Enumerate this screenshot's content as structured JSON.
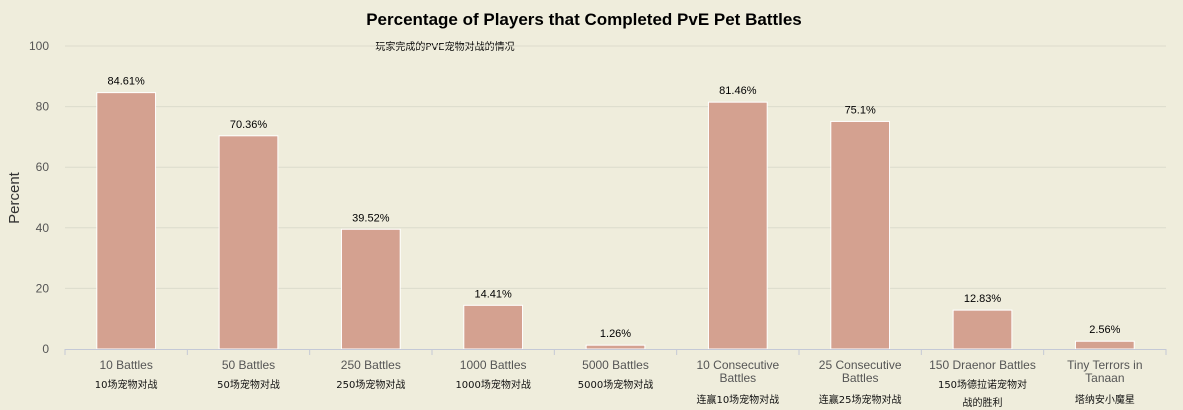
{
  "chart_data": {
    "type": "bar",
    "title": "Percentage of Players that Completed PvE Pet Battles",
    "subtitle": "玩家完成的PVE宠物对战的情况",
    "xlabel": "",
    "ylabel": "Percent",
    "ylim": [
      0,
      100
    ],
    "yticks": [
      0,
      20,
      40,
      60,
      80,
      100
    ],
    "grid": true,
    "legend": "none",
    "bar_color": "#d4a190",
    "categories": [
      {
        "label": [
          "10 Battles"
        ],
        "cn": [
          "10场宠物对战"
        ]
      },
      {
        "label": [
          "50 Battles"
        ],
        "cn": [
          "50场宠物对战"
        ]
      },
      {
        "label": [
          "250 Battles"
        ],
        "cn": [
          "250场宠物对战"
        ]
      },
      {
        "label": [
          "1000 Battles"
        ],
        "cn": [
          "1000场宠物对战"
        ]
      },
      {
        "label": [
          "5000 Battles"
        ],
        "cn": [
          "5000场宠物对战"
        ]
      },
      {
        "label": [
          "10 Consecutive",
          "Battles"
        ],
        "cn": [
          "连赢10场宠物对战"
        ]
      },
      {
        "label": [
          "25 Consecutive",
          "Battles"
        ],
        "cn": [
          "连赢25场宠物对战"
        ]
      },
      {
        "label": [
          "150 Draenor Battles"
        ],
        "cn": [
          "150场德拉诺宠物对",
          "战的胜利"
        ]
      },
      {
        "label": [
          "Tiny Terrors in",
          "Tanaan"
        ],
        "cn": [
          "塔纳安小魔星"
        ]
      }
    ],
    "values": [
      84.61,
      70.36,
      39.52,
      14.41,
      1.26,
      81.46,
      75.1,
      12.83,
      2.56
    ],
    "data_labels": [
      "84.61%",
      "70.36%",
      "39.52%",
      "14.41%",
      "1.26%",
      "81.46%",
      "75.1%",
      "12.83%",
      "2.56%"
    ]
  }
}
